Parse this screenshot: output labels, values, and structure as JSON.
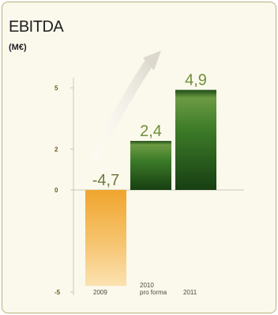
{
  "chart_data": {
    "type": "bar",
    "title": "EBITDA",
    "subtitle": "(M€)",
    "categories": [
      [
        "2009"
      ],
      [
        "2010",
        "pro forma"
      ],
      [
        "2011"
      ]
    ],
    "values": [
      -4.7,
      2.4,
      4.9
    ],
    "value_labels": [
      "-4,7",
      "2,4",
      "4,9"
    ],
    "y_ticks": [
      -5,
      0,
      2,
      5
    ],
    "ylim": [
      -5,
      5
    ],
    "grid": false,
    "colors": {
      "negative": "#f2b64f",
      "positive": "#2f6a1f",
      "label_negative": "#6f7a42",
      "label_positive": "#6f8f3a"
    }
  }
}
